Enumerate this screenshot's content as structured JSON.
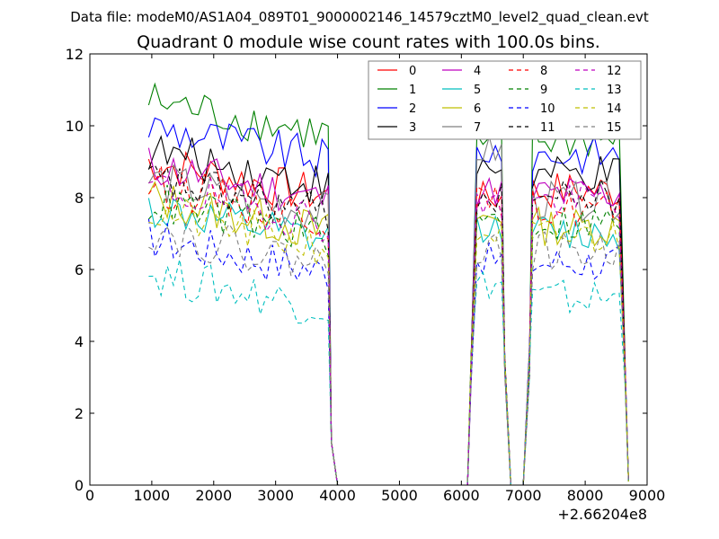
{
  "suptitle": "Data file: modeM0/AS1A04_089T01_9000002146_14579cztM0_level2_quad_clean.evt",
  "chart_data": {
    "type": "line",
    "title": "Quadrant 0 module wise count rates with 100.0s bins.",
    "xlabel": "",
    "ylabel": "",
    "x_offset_label": "+2.66204e8",
    "xlim": [
      0,
      9000
    ],
    "ylim": [
      0,
      12
    ],
    "xticks": [
      0,
      1000,
      2000,
      3000,
      4000,
      5000,
      6000,
      7000,
      8000,
      9000
    ],
    "yticks": [
      0,
      2,
      4,
      6,
      8,
      10,
      12
    ],
    "grid": false,
    "legend_location": "upper-right",
    "legend_columns": 4,
    "segments": [
      {
        "start": 950,
        "count": 30,
        "step": 100,
        "tail": [
          1.2,
          0.0
        ]
      },
      {
        "lead": [
          0.0,
          2.5
        ],
        "start": 6150,
        "count": 5,
        "step": 100,
        "tail": [
          3.0,
          0.0
        ]
      },
      {
        "lead": [
          0.0,
          3.0
        ],
        "start": 7150,
        "count": 15,
        "step": 100,
        "tail": [
          2.5,
          0.0
        ]
      }
    ],
    "gap_x": [
      [
        4000,
        6100
      ],
      [
        6800,
        7000
      ]
    ],
    "series": [
      {
        "name": "0",
        "color": "#ff0000",
        "style": "solid",
        "level": 8.6,
        "seg2": 8.0,
        "seg3": 8.2
      },
      {
        "name": "1",
        "color": "#008000",
        "style": "solid",
        "level": 10.3,
        "seg2": 9.4,
        "seg3": 9.6
      },
      {
        "name": "2",
        "color": "#0000ff",
        "style": "solid",
        "level": 9.6,
        "seg2": 9.3,
        "seg3": 9.2
      },
      {
        "name": "3",
        "color": "#000000",
        "style": "solid",
        "level": 8.9,
        "seg2": 8.8,
        "seg3": 8.6
      },
      {
        "name": "4",
        "color": "#bf00bf",
        "style": "solid",
        "level": 8.5,
        "seg2": 8.2,
        "seg3": 8.1
      },
      {
        "name": "5",
        "color": "#00bfbf",
        "style": "solid",
        "level": 7.3,
        "seg2": 7.2,
        "seg3": 7.0
      },
      {
        "name": "6",
        "color": "#bfbf00",
        "style": "solid",
        "level": 7.6,
        "seg2": 7.4,
        "seg3": 7.2
      },
      {
        "name": "7",
        "color": "#808080",
        "style": "solid",
        "level": 8.1,
        "seg2": 9.3,
        "seg3": 7.9
      },
      {
        "name": "8",
        "color": "#ff0000",
        "style": "dashed",
        "level": 8.0,
        "seg2": 7.9,
        "seg3": 7.7
      },
      {
        "name": "9",
        "color": "#008000",
        "style": "dashed",
        "level": 7.5,
        "seg2": 7.4,
        "seg3": 7.3
      },
      {
        "name": "10",
        "color": "#0000ff",
        "style": "dashed",
        "level": 6.5,
        "seg2": 6.3,
        "seg3": 6.2
      },
      {
        "name": "11",
        "color": "#000000",
        "style": "dashed",
        "level": 8.1,
        "seg2": 8.0,
        "seg3": 8.0
      },
      {
        "name": "12",
        "color": "#bf00bf",
        "style": "dashed",
        "level": 7.9,
        "seg2": 7.8,
        "seg3": 7.9
      },
      {
        "name": "13",
        "color": "#00bfbf",
        "style": "dashed",
        "level": 5.5,
        "seg2": 5.6,
        "seg3": 5.2
      },
      {
        "name": "14",
        "color": "#bfbf00",
        "style": "dashed",
        "level": 7.2,
        "seg2": 7.0,
        "seg3": 6.9
      },
      {
        "name": "15",
        "color": "#808080",
        "style": "dashed",
        "level": 6.7,
        "seg2": 6.6,
        "seg3": 6.5
      }
    ]
  }
}
